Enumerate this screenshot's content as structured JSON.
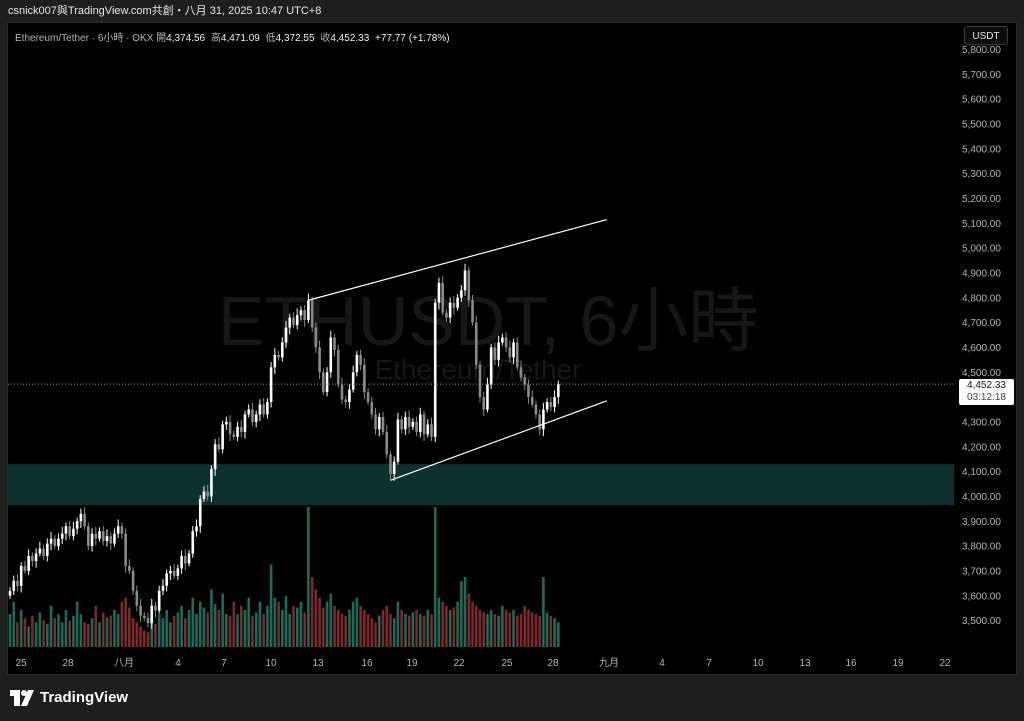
{
  "header": {
    "text": "csnick007與TradingView.com共創・八月 31, 2025 10:47 UTC+8"
  },
  "legend": {
    "symbol": "Ethereum/Tether · 6小時 · OKX",
    "open_label": "開",
    "open": "4,374.56",
    "high_label": "高",
    "high": "4,471.09",
    "low_label": "低",
    "low": "4,372.55",
    "close_label": "收",
    "close": "4,452.33",
    "change": "+77.77 (+1.78%)"
  },
  "currency_button": "USDT",
  "watermark": {
    "title": "ETHUSDT, 6小時",
    "subtitle": "Ethereum/Tether"
  },
  "current_price": {
    "value": "4,452.33",
    "countdown": "03:12:18"
  },
  "footer": {
    "brand": "TradingView"
  },
  "colors": {
    "up": "#ffffff",
    "down": "#8a8a8a",
    "vol_up": "#1a6b5a",
    "vol_down": "#7e2a2c",
    "zone": "#0f3b36",
    "trendline": "#ffffff"
  },
  "chart_data": {
    "type": "candlestick",
    "symbol": "ETHUSDT",
    "timeframe": "6小時",
    "y_axis": {
      "ticks": [
        "5,800.00",
        "5,700.00",
        "5,600.00",
        "5,500.00",
        "5,400.00",
        "5,300.00",
        "5,200.00",
        "5,100.00",
        "5,000.00",
        "4,900.00",
        "4,800.00",
        "4,700.00",
        "4,600.00",
        "4,500.00",
        "4,400.00",
        "4,300.00",
        "4,200.00",
        "4,100.00",
        "4,000.00",
        "3,900.00",
        "3,800.00",
        "3,700.00",
        "3,600.00",
        "3,500.00"
      ],
      "range": [
        3450,
        5850
      ]
    },
    "x_axis": {
      "ticks": [
        "25",
        "28",
        "八月",
        "4",
        "7",
        "10",
        "13",
        "16",
        "19",
        "22",
        "25",
        "28",
        "九月",
        "4",
        "7",
        "10",
        "13",
        "16",
        "19",
        "22"
      ]
    },
    "support_zone": {
      "low": 3965,
      "high": 4130
    },
    "trendlines": [
      {
        "name": "upper",
        "from": {
          "i": 80,
          "price": 4790
        },
        "to": {
          "i": 160,
          "price": 5115
        }
      },
      {
        "name": "lower",
        "from": {
          "i": 102,
          "price": 4065
        },
        "to": {
          "i": 160,
          "price": 4385
        }
      }
    ],
    "candles": [
      3620,
      3660,
      3640,
      3720,
      3700,
      3760,
      3740,
      3770,
      3790,
      3760,
      3810,
      3830,
      3800,
      3830,
      3850,
      3880,
      3840,
      3870,
      3900,
      3930,
      3880,
      3800,
      3850,
      3830,
      3860,
      3820,
      3840,
      3810,
      3850,
      3880,
      3850,
      3720,
      3700,
      3620,
      3560,
      3520,
      3510,
      3490,
      3560,
      3540,
      3620,
      3640,
      3690,
      3700,
      3680,
      3710,
      3760,
      3730,
      3770,
      3860,
      3880,
      3990,
      4020,
      4000,
      4110,
      4210,
      4190,
      4290,
      4300,
      4250,
      4240,
      4280,
      4260,
      4330,
      4350,
      4300,
      4330,
      4370,
      4330,
      4380,
      4520,
      4570,
      4560,
      4620,
      4680,
      4720,
      4690,
      4730,
      4750,
      4710,
      4790,
      4680,
      4600,
      4500,
      4420,
      4500,
      4640,
      4590,
      4450,
      4390,
      4380,
      4430,
      4500,
      4570,
      4530,
      4420,
      4380,
      4330,
      4270,
      4320,
      4260,
      4170,
      4090,
      4140,
      4310,
      4270,
      4320,
      4280,
      4300,
      4260,
      4330,
      4250,
      4290,
      4240,
      4780,
      4860,
      4740,
      4720,
      4780,
      4760,
      4800,
      4830,
      4910,
      4790,
      4700,
      4530,
      4400,
      4350,
      4450,
      4600,
      4550,
      4620,
      4640,
      4600,
      4560,
      4620,
      4520,
      4480,
      4450,
      4400,
      4370,
      4330,
      4270,
      4350,
      4380,
      4360,
      4400,
      4452
    ],
    "volume": [
      40,
      55,
      30,
      45,
      35,
      25,
      38,
      30,
      42,
      33,
      28,
      50,
      35,
      40,
      30,
      45,
      32,
      38,
      55,
      40,
      30,
      28,
      35,
      50,
      30,
      42,
      36,
      38,
      45,
      40,
      55,
      60,
      48,
      35,
      30,
      25,
      20,
      18,
      32,
      28,
      40,
      35,
      45,
      30,
      38,
      42,
      50,
      35,
      45,
      60,
      40,
      55,
      48,
      42,
      70,
      52,
      45,
      65,
      40,
      38,
      55,
      40,
      50,
      45,
      60,
      38,
      42,
      55,
      40,
      50,
      100,
      60,
      55,
      45,
      62,
      40,
      50,
      48,
      55,
      42,
      170,
      85,
      70,
      60,
      48,
      55,
      65,
      50,
      45,
      40,
      38,
      45,
      55,
      60,
      50,
      45,
      40,
      35,
      30,
      38,
      45,
      50,
      40,
      35,
      55,
      45,
      40,
      38,
      42,
      45,
      40,
      38,
      45,
      40,
      170,
      60,
      55,
      50,
      45,
      48,
      55,
      80,
      85,
      65,
      55,
      50,
      45,
      42,
      40,
      45,
      40,
      38,
      50,
      45,
      42,
      45,
      38,
      40,
      50,
      45,
      42,
      40,
      38,
      85,
      42,
      38,
      35,
      30
    ]
  }
}
